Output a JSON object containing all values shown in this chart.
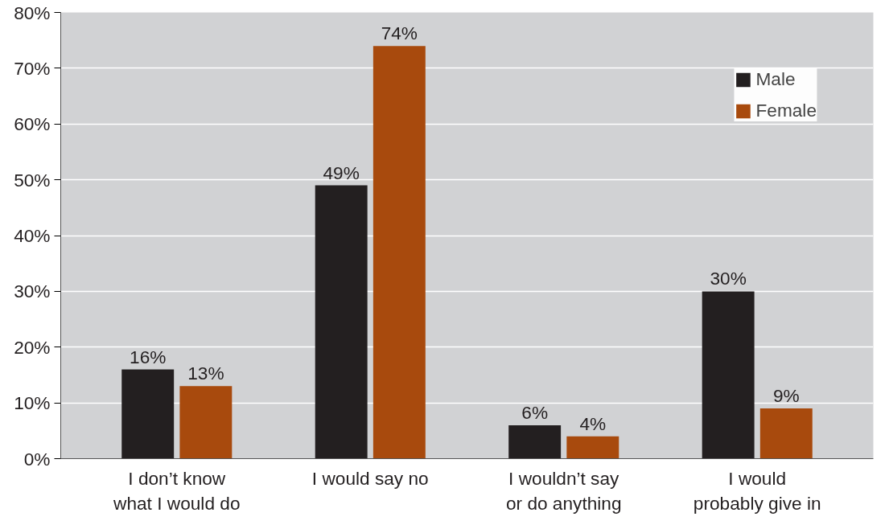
{
  "chart_data": {
    "type": "bar",
    "categories": [
      "I don’t know\nwhat I would do",
      "I would say no",
      "I wouldn’t say\nor do anything",
      "I would\nprobably give in"
    ],
    "series": [
      {
        "name": "Male",
        "color": "#231f20",
        "values": [
          16,
          49,
          6,
          30
        ],
        "value_labels": [
          "16%",
          "49%",
          "6%",
          "30%"
        ]
      },
      {
        "name": "Female",
        "color": "#a84a0d",
        "values": [
          13,
          74,
          4,
          9
        ],
        "value_labels": [
          "13%",
          "74%",
          "4%",
          "9%"
        ]
      }
    ],
    "ylim": [
      0,
      80
    ],
    "yticks": [
      {
        "value": 0,
        "label": "0%"
      },
      {
        "value": 10,
        "label": "10%"
      },
      {
        "value": 20,
        "label": "20%"
      },
      {
        "value": 30,
        "label": "30%"
      },
      {
        "value": 40,
        "label": "40%"
      },
      {
        "value": 50,
        "label": "50%"
      },
      {
        "value": 60,
        "label": "60%"
      },
      {
        "value": 70,
        "label": "70%"
      },
      {
        "value": 80,
        "label": "80%"
      }
    ],
    "grid": "y",
    "legend": "top right"
  }
}
